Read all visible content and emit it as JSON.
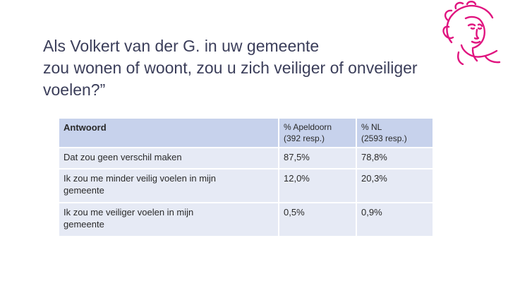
{
  "slide": {
    "title_line1": "Als Volkert van der G. in uw gemeente",
    "title_line2": "zou wonen of woont, zou u zich veiliger of onveiliger",
    "title_line3": "voelen?”"
  },
  "colors": {
    "title": "#3b3e5a",
    "header_bg": "#c7d2ec",
    "row_bg": "#e6eaf5",
    "logo": "#e0137f"
  },
  "logo_icon": "portrait-line-drawing-icon",
  "table": {
    "headers": {
      "answer": "Antwoord",
      "apeldoorn_line1": "% Apeldoorn",
      "apeldoorn_line2": "(392 resp.)",
      "nl_line1": "% NL",
      "nl_line2": "(2593 resp.)"
    },
    "rows": [
      {
        "answer": "Dat zou geen verschil maken",
        "apeldoorn": "87,5%",
        "nl": "78,8%"
      },
      {
        "answer_line1": "Ik zou me minder veilig voelen in mijn",
        "answer_line2": "gemeente",
        "apeldoorn": "12,0%",
        "nl": "20,3%"
      },
      {
        "answer_line1": "Ik zou me veiliger voelen in mijn",
        "answer_line2": "gemeente",
        "apeldoorn": "0,5%",
        "nl": "0,9%"
      }
    ]
  }
}
